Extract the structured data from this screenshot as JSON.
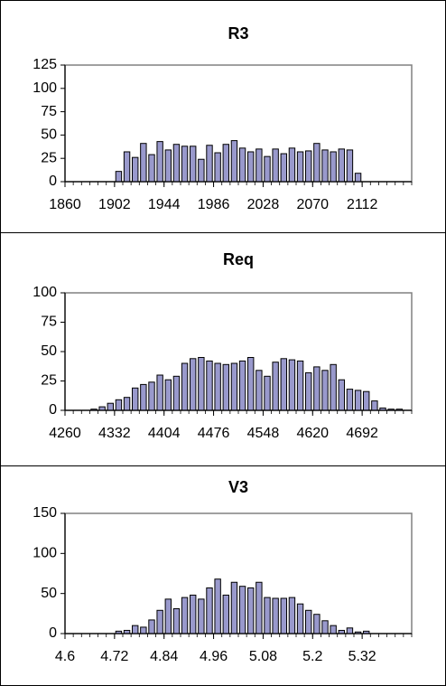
{
  "chart_data": [
    {
      "type": "bar",
      "title": "R3",
      "ylim": [
        0,
        125
      ],
      "yticks": [
        0,
        25,
        50,
        75,
        100,
        125
      ],
      "xlim": [
        1860,
        2154
      ],
      "xticks": [
        1860,
        1902,
        1944,
        1986,
        2028,
        2070,
        2112
      ],
      "bin_width": 7,
      "x": [
        1860,
        1867,
        1874,
        1881,
        1888,
        1895,
        1902,
        1909,
        1916,
        1923,
        1930,
        1937,
        1944,
        1951,
        1958,
        1965,
        1972,
        1979,
        1986,
        1993,
        2000,
        2007,
        2014,
        2021,
        2028,
        2035,
        2042,
        2049,
        2056,
        2063,
        2070,
        2077,
        2084,
        2091,
        2098,
        2105,
        2112,
        2119,
        2126,
        2133,
        2140,
        2147
      ],
      "values": [
        0,
        0,
        0,
        0,
        0,
        0,
        11,
        32,
        26,
        41,
        29,
        43,
        34,
        40,
        38,
        38,
        24,
        39,
        31,
        40,
        44,
        36,
        32,
        35,
        27,
        35,
        30,
        36,
        32,
        33,
        41,
        34,
        32,
        35,
        34,
        9,
        0,
        0,
        0,
        0,
        0,
        0
      ],
      "bar_color": "#9999cc"
    },
    {
      "type": "bar",
      "title": "Req",
      "ylim": [
        0,
        100
      ],
      "yticks": [
        0,
        25,
        50,
        75,
        100
      ],
      "xlim": [
        4260,
        4764
      ],
      "xticks": [
        4260,
        4332,
        4404,
        4476,
        4548,
        4620,
        4692
      ],
      "bin_width": 12,
      "x": [
        4260,
        4272,
        4284,
        4296,
        4308,
        4320,
        4332,
        4344,
        4356,
        4368,
        4380,
        4392,
        4404,
        4416,
        4428,
        4440,
        4452,
        4464,
        4476,
        4488,
        4500,
        4512,
        4524,
        4536,
        4548,
        4560,
        4572,
        4584,
        4596,
        4608,
        4620,
        4632,
        4644,
        4656,
        4668,
        4680,
        4692,
        4704,
        4716,
        4728,
        4740,
        4752
      ],
      "values": [
        0,
        0,
        0,
        1,
        3,
        6,
        9,
        11,
        19,
        22,
        24,
        30,
        26,
        29,
        40,
        44,
        45,
        42,
        40,
        39,
        40,
        42,
        45,
        34,
        29,
        41,
        44,
        43,
        42,
        32,
        37,
        34,
        39,
        26,
        18,
        17,
        16,
        8,
        2,
        1,
        1,
        0
      ],
      "bar_color": "#9999cc"
    },
    {
      "type": "bar",
      "title": "V3",
      "ylim": [
        0,
        150
      ],
      "yticks": [
        0,
        50,
        100,
        150
      ],
      "xlim": [
        4.6,
        5.44
      ],
      "xticks": [
        4.6,
        4.72,
        4.84,
        4.96,
        5.08,
        5.2,
        5.32
      ],
      "xtick_labels": [
        "4.6",
        "4.72",
        "4.84",
        "4.96",
        "5.08",
        "5.2",
        "5.32"
      ],
      "bin_width": 0.02,
      "x": [
        4.6,
        4.62,
        4.64,
        4.66,
        4.68,
        4.7,
        4.72,
        4.74,
        4.76,
        4.78,
        4.8,
        4.82,
        4.84,
        4.86,
        4.88,
        4.9,
        4.92,
        4.94,
        4.96,
        4.98,
        5.0,
        5.02,
        5.04,
        5.06,
        5.08,
        5.1,
        5.12,
        5.14,
        5.16,
        5.18,
        5.2,
        5.22,
        5.24,
        5.26,
        5.28,
        5.3,
        5.32,
        5.34,
        5.36,
        5.38,
        5.4,
        5.42
      ],
      "values": [
        0,
        0,
        0,
        0,
        0,
        0,
        3,
        4,
        10,
        8,
        17,
        29,
        43,
        31,
        45,
        48,
        43,
        57,
        68,
        48,
        64,
        59,
        57,
        64,
        45,
        44,
        44,
        45,
        37,
        29,
        24,
        16,
        10,
        4,
        7,
        2,
        3,
        0,
        0,
        0,
        0,
        0
      ],
      "bar_color": "#9999cc"
    }
  ]
}
